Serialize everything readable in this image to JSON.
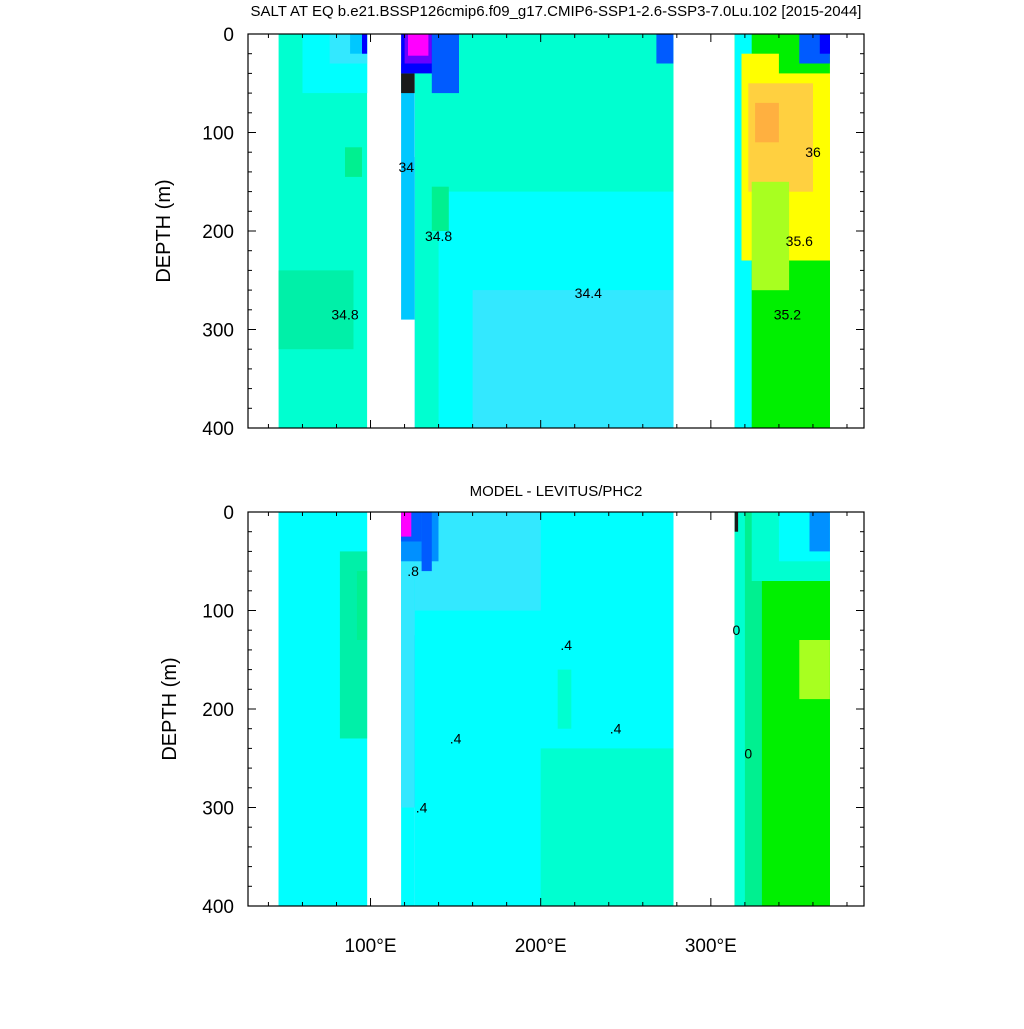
{
  "figure": {
    "background": "#ffffff"
  },
  "chart_data": [
    {
      "type": "heatmap",
      "title": "SALT AT EQ b.e21.BSSP126cmip6.f09_g17.CMIP6-SSP1-2.6-SSP3-7.0Lu.102 [2015-2044]",
      "ylabel": "DEPTH (m)",
      "xlabel": "",
      "xlim": [
        28,
        390
      ],
      "ylim": [
        400,
        0
      ],
      "yticks": [
        "0",
        "100",
        "200",
        "300",
        "400"
      ],
      "contour_labels": [
        {
          "text": "34",
          "x": 121,
          "y": 140
        },
        {
          "text": "34.8",
          "x": 140,
          "y": 210
        },
        {
          "text": "34.8",
          "x": 85,
          "y": 290
        },
        {
          "text": "34.4",
          "x": 228,
          "y": 268
        },
        {
          "text": "36",
          "x": 360,
          "y": 125
        },
        {
          "text": "35.6",
          "x": 352,
          "y": 215
        },
        {
          "text": "35.2",
          "x": 345,
          "y": 290
        }
      ],
      "colors": [
        "#1a1a1a",
        "#7f2f8f",
        "#ff00ff",
        "#6a00ff",
        "#0000ff",
        "#005bff",
        "#0090ff",
        "#00c8ff",
        "#33e8ff",
        "#00ffff",
        "#00ffd0",
        "#00f090",
        "#00f000",
        "#a8ff20",
        "#ffff00",
        "#ffd040",
        "#ffb040"
      ],
      "fields": [
        {
          "x": [
            46,
            98
          ],
          "color": "#00ffd0"
        },
        {
          "x": [
            118,
            126
          ],
          "color": "#00c8ff"
        },
        {
          "x": [
            126,
            278
          ],
          "color": "#00ffd0"
        },
        {
          "x": [
            314,
            370
          ],
          "color": "#00f090"
        }
      ],
      "regions": [
        {
          "x": [
            46,
            98
          ],
          "y": [
            0,
            400
          ],
          "color": "#00ffd0"
        },
        {
          "x": [
            60,
            98
          ],
          "y": [
            0,
            60
          ],
          "color": "#00ffff"
        },
        {
          "x": [
            76,
            98
          ],
          "y": [
            0,
            30
          ],
          "color": "#33e8ff"
        },
        {
          "x": [
            88,
            98
          ],
          "y": [
            0,
            20
          ],
          "color": "#00c8ff"
        },
        {
          "x": [
            95,
            98
          ],
          "y": [
            0,
            20
          ],
          "color": "#0000ff"
        },
        {
          "x": [
            85,
            95
          ],
          "y": [
            115,
            145
          ],
          "color": "#00f090"
        },
        {
          "x": [
            46,
            90
          ],
          "y": [
            240,
            320
          ],
          "color": "#00f0a8"
        },
        {
          "x": [
            118,
            126
          ],
          "y": [
            30,
            290
          ],
          "color": "#00c8ff"
        },
        {
          "x": [
            118,
            126
          ],
          "y": [
            40,
            60
          ],
          "color": "#1a1a1a"
        },
        {
          "x": [
            126,
            130
          ],
          "y": [
            125,
            400
          ],
          "color": "#0090ff"
        },
        {
          "x": [
            126,
            278
          ],
          "y": [
            0,
            400
          ],
          "color": "#00ffd0"
        },
        {
          "x": [
            140,
            278
          ],
          "y": [
            160,
            400
          ],
          "color": "#00ffff"
        },
        {
          "x": [
            160,
            278
          ],
          "y": [
            260,
            400
          ],
          "color": "#33e8ff"
        },
        {
          "x": [
            118,
            140
          ],
          "y": [
            0,
            40
          ],
          "color": "#0000ff"
        },
        {
          "x": [
            120,
            136
          ],
          "y": [
            0,
            30
          ],
          "color": "#6a00ff"
        },
        {
          "x": [
            122,
            134
          ],
          "y": [
            0,
            22
          ],
          "color": "#ff00ff"
        },
        {
          "x": [
            136,
            152
          ],
          "y": [
            0,
            60
          ],
          "color": "#005bff"
        },
        {
          "x": [
            136,
            146
          ],
          "y": [
            155,
            200
          ],
          "color": "#00f090"
        },
        {
          "x": [
            268,
            278
          ],
          "y": [
            0,
            30
          ],
          "color": "#005bff"
        },
        {
          "x": [
            314,
            370
          ],
          "y": [
            0,
            400
          ],
          "color": "#00f000"
        },
        {
          "x": [
            314,
            324
          ],
          "y": [
            0,
            400
          ],
          "color": "#00ffff"
        },
        {
          "x": [
            318,
            370
          ],
          "y": [
            20,
            230
          ],
          "color": "#ffff00"
        },
        {
          "x": [
            322,
            360
          ],
          "y": [
            50,
            160
          ],
          "color": "#ffd040"
        },
        {
          "x": [
            326,
            340
          ],
          "y": [
            70,
            110
          ],
          "color": "#ffb040"
        },
        {
          "x": [
            324,
            346
          ],
          "y": [
            150,
            260
          ],
          "color": "#a8ff20"
        },
        {
          "x": [
            340,
            370
          ],
          "y": [
            0,
            40
          ],
          "color": "#00f000"
        },
        {
          "x": [
            352,
            370
          ],
          "y": [
            0,
            30
          ],
          "color": "#005bff"
        },
        {
          "x": [
            364,
            370
          ],
          "y": [
            0,
            20
          ],
          "color": "#0000ff"
        }
      ]
    },
    {
      "type": "heatmap",
      "title": "MODEL - LEVITUS/PHC2",
      "ylabel": "DEPTH (m)",
      "xlabel": "",
      "xlim": [
        28,
        390
      ],
      "ylim": [
        400,
        0
      ],
      "xticks": [
        "100°E",
        "200°E",
        "300°E"
      ],
      "yticks": [
        "0",
        "100",
        "200",
        "300",
        "400"
      ],
      "contour_labels": [
        {
          "text": ".8",
          "x": 125,
          "y": 65
        },
        {
          "text": ".4",
          "x": 150,
          "y": 235
        },
        {
          "text": ".4",
          "x": 130,
          "y": 305
        },
        {
          "text": ".4",
          "x": 215,
          "y": 140
        },
        {
          "text": ".4",
          "x": 244,
          "y": 225
        },
        {
          "text": "0",
          "x": 315,
          "y": 125
        },
        {
          "text": "0",
          "x": 322,
          "y": 250
        }
      ],
      "regions": [
        {
          "x": [
            46,
            98
          ],
          "y": [
            0,
            400
          ],
          "color": "#00ffd0"
        },
        {
          "x": [
            46,
            98
          ],
          "y": [
            0,
            400
          ],
          "color": "#00ffff"
        },
        {
          "x": [
            82,
            98
          ],
          "y": [
            40,
            230
          ],
          "color": "#00f0a8"
        },
        {
          "x": [
            92,
            98
          ],
          "y": [
            60,
            130
          ],
          "color": "#00f090"
        },
        {
          "x": [
            118,
            126
          ],
          "y": [
            0,
            400
          ],
          "color": "#00ffff"
        },
        {
          "x": [
            118,
            130
          ],
          "y": [
            20,
            300
          ],
          "color": "#33e8ff"
        },
        {
          "x": [
            126,
            130
          ],
          "y": [
            125,
            400
          ],
          "color": "#00c8ff"
        },
        {
          "x": [
            126,
            278
          ],
          "y": [
            0,
            400
          ],
          "color": "#00ffff"
        },
        {
          "x": [
            126,
            200
          ],
          "y": [
            0,
            100
          ],
          "color": "#33e8ff"
        },
        {
          "x": [
            200,
            278
          ],
          "y": [
            240,
            400
          ],
          "color": "#00ffd0"
        },
        {
          "x": [
            210,
            218
          ],
          "y": [
            160,
            220
          ],
          "color": "#00ffd0"
        },
        {
          "x": [
            118,
            140
          ],
          "y": [
            0,
            50
          ],
          "color": "#0090ff"
        },
        {
          "x": [
            118,
            130
          ],
          "y": [
            0,
            30
          ],
          "color": "#005bff"
        },
        {
          "x": [
            118,
            124
          ],
          "y": [
            0,
            25
          ],
          "color": "#ff00ff"
        },
        {
          "x": [
            130,
            136
          ],
          "y": [
            0,
            60
          ],
          "color": "#005bff"
        },
        {
          "x": [
            314,
            370
          ],
          "y": [
            0,
            400
          ],
          "color": "#00f000"
        },
        {
          "x": [
            314,
            330
          ],
          "y": [
            0,
            400
          ],
          "color": "#00f090"
        },
        {
          "x": [
            314,
            320
          ],
          "y": [
            0,
            400
          ],
          "color": "#00ffd0"
        },
        {
          "x": [
            324,
            370
          ],
          "y": [
            0,
            70
          ],
          "color": "#00ffd0"
        },
        {
          "x": [
            340,
            370
          ],
          "y": [
            0,
            50
          ],
          "color": "#00ffff"
        },
        {
          "x": [
            358,
            370
          ],
          "y": [
            0,
            40
          ],
          "color": "#0090ff"
        },
        {
          "x": [
            352,
            370
          ],
          "y": [
            130,
            190
          ],
          "color": "#a8ff20"
        },
        {
          "x": [
            314,
            316
          ],
          "y": [
            0,
            20
          ],
          "color": "#1a1a1a"
        }
      ]
    }
  ]
}
